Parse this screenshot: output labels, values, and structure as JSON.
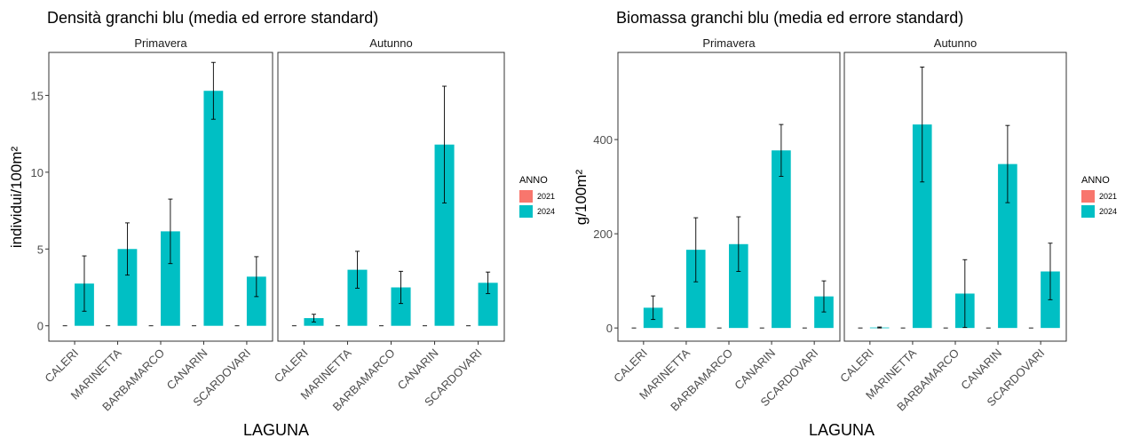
{
  "colors": {
    "y2021": "#F8766D",
    "y2024": "#00BFC4",
    "panel_border": "#333333",
    "error_bar": "#000000"
  },
  "legend": {
    "title": "ANNO",
    "items": [
      "2021",
      "2024"
    ],
    "placement": "right"
  },
  "chart_data": [
    {
      "type": "bar",
      "title": "Densità granchi blu (media ed errore standard)",
      "xlabel": "LAGUNA",
      "ylabel": "individui/100m²",
      "ylim": [
        -1,
        17.8
      ],
      "yticks": [
        0,
        5,
        10,
        15
      ],
      "ytick_labels": [
        "0",
        "5",
        "10",
        "15"
      ],
      "grid": false,
      "categories": [
        "CALERI",
        "MARINETTA",
        "BARBAMARCO",
        "CANARIN",
        "SCARDOVARI"
      ],
      "facets": [
        {
          "name": "Primavera",
          "series": [
            {
              "name": "2021",
              "values": [
                0,
                0,
                0,
                0,
                0
              ],
              "err": [
                0,
                0,
                0,
                0,
                0
              ]
            },
            {
              "name": "2024",
              "values": [
                2.75,
                5.0,
                6.15,
                15.3,
                3.2
              ],
              "err": [
                1.8,
                1.7,
                2.1,
                1.85,
                1.3
              ]
            }
          ]
        },
        {
          "name": "Autunno",
          "series": [
            {
              "name": "2021",
              "values": [
                0,
                0,
                0,
                0,
                0
              ],
              "err": [
                0,
                0,
                0,
                0,
                0
              ]
            },
            {
              "name": "2024",
              "values": [
                0.5,
                3.65,
                2.5,
                11.8,
                2.8
              ],
              "err": [
                0.25,
                1.2,
                1.05,
                3.8,
                0.7
              ]
            }
          ]
        }
      ]
    },
    {
      "type": "bar",
      "title": "Biomassa granchi blu (media ed errore standard)",
      "xlabel": "LAGUNA",
      "ylabel": "g/100m²",
      "ylim": [
        -28,
        585
      ],
      "yticks": [
        0,
        200,
        400
      ],
      "ytick_labels": [
        "0",
        "200",
        "400"
      ],
      "grid": false,
      "categories": [
        "CALERI",
        "MARINETTA",
        "BARBAMARCO",
        "CANARIN",
        "SCARDOVARI"
      ],
      "facets": [
        {
          "name": "Primavera",
          "series": [
            {
              "name": "2021",
              "values": [
                0,
                0,
                0,
                0,
                0
              ],
              "err": [
                0,
                0,
                0,
                0,
                0
              ]
            },
            {
              "name": "2024",
              "values": [
                43,
                166,
                178,
                377,
                67
              ],
              "err": [
                25,
                68,
                58,
                55,
                33
              ]
            }
          ]
        },
        {
          "name": "Autunno",
          "series": [
            {
              "name": "2021",
              "values": [
                0,
                0,
                0,
                0,
                0
              ],
              "err": [
                0,
                0,
                0,
                0,
                0
              ]
            },
            {
              "name": "2024",
              "values": [
                1,
                432,
                73,
                348,
                120
              ],
              "err": [
                1,
                122,
                72,
                82,
                60
              ]
            }
          ]
        }
      ]
    }
  ]
}
